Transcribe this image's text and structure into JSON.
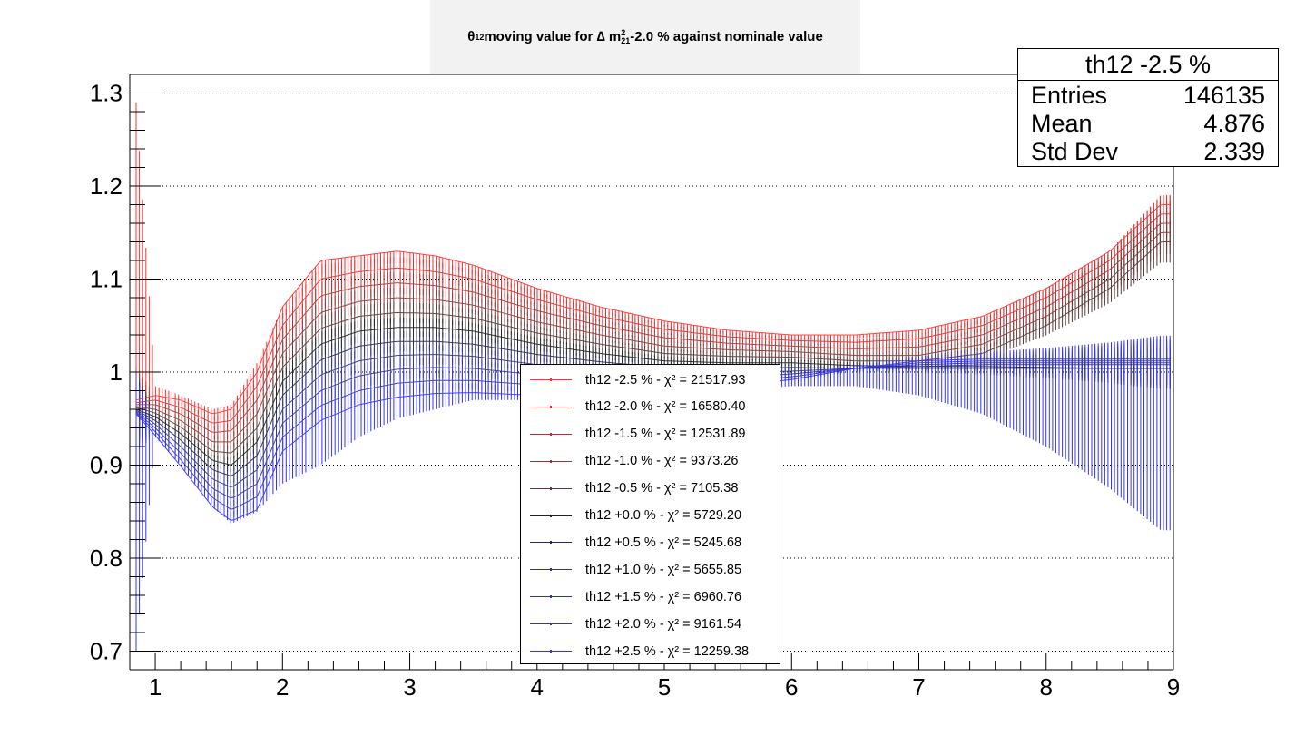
{
  "title": {
    "prefix": "θ",
    "prefix_sub": "12",
    "mid": " moving value for ∆ m",
    "sup": "2",
    "sub": "21",
    "suffix": " -2.0 % against nominale value"
  },
  "stats": {
    "title": "th12 -2.5 %",
    "rows": [
      {
        "label": "Entries",
        "value": "146135"
      },
      {
        "label": "Mean",
        "value": "4.876"
      },
      {
        "label": "Std Dev",
        "value": "2.339"
      }
    ]
  },
  "legend": [
    {
      "label": "th12 -2.5 % - χ² = 21517.93",
      "color": "#ff3333"
    },
    {
      "label": "th12 -2.0 % - χ² = 16580.40",
      "color": "#dd3333"
    },
    {
      "label": "th12 -1.5 % - χ² = 12531.89",
      "color": "#b13333"
    },
    {
      "label": "th12 -1.0 % - χ² = 9373.26",
      "color": "#8a3a3a"
    },
    {
      "label": "th12 -0.5 % - χ² = 7105.38",
      "color": "#5a3a3a"
    },
    {
      "label": "th12 +0.0 % - χ² = 5729.20",
      "color": "#222222"
    },
    {
      "label": "th12 +0.5 % - χ² = 5245.68",
      "color": "#2a2a55"
    },
    {
      "label": "th12 +1.0 % - χ² = 5655.85",
      "color": "#333388"
    },
    {
      "label": "th12 +1.5 % - χ² = 6960.76",
      "color": "#3333aa"
    },
    {
      "label": "th12 +2.0 % - χ² = 9161.54",
      "color": "#3333cc"
    },
    {
      "label": "th12 +2.5 % - χ² = 12259.38",
      "color": "#3333ff"
    }
  ],
  "chart_data": {
    "type": "line",
    "xlim": [
      0.8,
      9.0
    ],
    "ylim": [
      0.68,
      1.32
    ],
    "x_ticks": [
      "1",
      "2",
      "3",
      "4",
      "5",
      "6",
      "7",
      "8",
      "9"
    ],
    "y_ticks": [
      "0.7",
      "0.8",
      "0.9",
      "1",
      "1.1",
      "1.2",
      "1.3"
    ],
    "grid": "y-dotted",
    "legend_position": "bottom-center",
    "series": [
      {
        "name": "th12 -2.5 % - χ² = 21517.93",
        "x": [
          0.85,
          1.0,
          1.2,
          1.45,
          1.6,
          1.8,
          2.0,
          2.3,
          2.6,
          2.9,
          3.2,
          3.5,
          4.0,
          4.5,
          5.0,
          5.5,
          6.0,
          6.5,
          7.0,
          7.5,
          8.0,
          8.5,
          8.9
        ],
        "y": [
          0.97,
          0.975,
          0.97,
          0.955,
          0.96,
          1.0,
          1.07,
          1.12,
          1.125,
          1.13,
          1.125,
          1.115,
          1.09,
          1.07,
          1.055,
          1.045,
          1.04,
          1.04,
          1.045,
          1.06,
          1.09,
          1.13,
          1.18
        ]
      },
      {
        "name": "th12 -2.0 % - χ² = 16580.40",
        "x": [
          0.85,
          1.0,
          1.2,
          1.45,
          1.6,
          1.8,
          2.0,
          2.3,
          2.6,
          2.9,
          3.2,
          3.5,
          4.0,
          4.5,
          5.0,
          5.5,
          6.0,
          6.5,
          7.0,
          7.5,
          8.0,
          8.5,
          8.9
        ],
        "y": [
          0.967,
          0.97,
          0.962,
          0.945,
          0.948,
          0.985,
          1.05,
          1.1,
          1.108,
          1.112,
          1.108,
          1.1,
          1.078,
          1.06,
          1.046,
          1.038,
          1.034,
          1.032,
          1.036,
          1.05,
          1.08,
          1.12,
          1.17
        ]
      },
      {
        "name": "th12 -1.5 % - χ² = 12531.89",
        "x": [
          0.85,
          1.0,
          1.2,
          1.45,
          1.6,
          1.8,
          2.0,
          2.3,
          2.6,
          2.9,
          3.2,
          3.5,
          4.0,
          4.5,
          5.0,
          5.5,
          6.0,
          6.5,
          7.0,
          7.5,
          8.0,
          8.5,
          8.9
        ],
        "y": [
          0.965,
          0.965,
          0.955,
          0.935,
          0.937,
          0.97,
          1.035,
          1.082,
          1.092,
          1.096,
          1.093,
          1.086,
          1.066,
          1.05,
          1.037,
          1.031,
          1.028,
          1.025,
          1.027,
          1.04,
          1.07,
          1.11,
          1.16
        ]
      },
      {
        "name": "th12 -1.0 % - χ² = 9373.26",
        "x": [
          0.85,
          1.0,
          1.2,
          1.45,
          1.6,
          1.8,
          2.0,
          2.3,
          2.6,
          2.9,
          3.2,
          3.5,
          4.0,
          4.5,
          5.0,
          5.5,
          6.0,
          6.5,
          7.0,
          7.5,
          8.0,
          8.5,
          8.9
        ],
        "y": [
          0.963,
          0.96,
          0.948,
          0.925,
          0.925,
          0.955,
          1.02,
          1.064,
          1.076,
          1.08,
          1.078,
          1.072,
          1.054,
          1.04,
          1.028,
          1.024,
          1.022,
          1.018,
          1.018,
          1.03,
          1.06,
          1.1,
          1.15
        ]
      },
      {
        "name": "th12 -0.5 % - χ² = 7105.38",
        "x": [
          0.85,
          1.0,
          1.2,
          1.45,
          1.6,
          1.8,
          2.0,
          2.3,
          2.6,
          2.9,
          3.2,
          3.5,
          4.0,
          4.5,
          5.0,
          5.5,
          6.0,
          6.5,
          7.0,
          7.5,
          8.0,
          8.5,
          8.9
        ],
        "y": [
          0.962,
          0.956,
          0.941,
          0.915,
          0.913,
          0.94,
          1.005,
          1.047,
          1.06,
          1.064,
          1.063,
          1.058,
          1.042,
          1.03,
          1.02,
          1.017,
          1.016,
          1.012,
          1.012,
          1.02,
          1.05,
          1.09,
          1.14
        ]
      },
      {
        "name": "th12 +0.0 % - χ² = 5729.20",
        "x": [
          0.85,
          1.0,
          1.2,
          1.45,
          1.6,
          1.8,
          2.0,
          2.3,
          2.6,
          2.9,
          3.2,
          3.5,
          4.0,
          4.5,
          5.0,
          5.5,
          6.0,
          6.5,
          7.0,
          7.5,
          8.0,
          8.5,
          8.9
        ],
        "y": [
          0.96,
          0.952,
          0.934,
          0.905,
          0.9,
          0.925,
          0.99,
          1.03,
          1.044,
          1.048,
          1.048,
          1.044,
          1.03,
          1.02,
          1.012,
          1.01,
          1.01,
          1.007,
          1.006,
          1.006,
          1.005,
          1.004,
          1.004
        ]
      },
      {
        "name": "th12 +0.5 % - χ² = 5245.68",
        "x": [
          0.85,
          1.0,
          1.2,
          1.45,
          1.6,
          1.8,
          2.0,
          2.3,
          2.6,
          2.9,
          3.2,
          3.5,
          4.0,
          4.5,
          5.0,
          5.5,
          6.0,
          6.5,
          7.0,
          7.5,
          8.0,
          8.5,
          8.9
        ],
        "y": [
          0.959,
          0.948,
          0.927,
          0.895,
          0.888,
          0.91,
          0.975,
          1.013,
          1.028,
          1.033,
          1.033,
          1.03,
          1.019,
          1.011,
          1.005,
          1.004,
          1.005,
          1.004,
          1.004,
          1.004,
          1.004,
          1.004,
          1.004
        ]
      },
      {
        "name": "th12 +1.0 % - χ² = 5655.85",
        "x": [
          0.85,
          1.0,
          1.2,
          1.45,
          1.6,
          1.8,
          2.0,
          2.3,
          2.6,
          2.9,
          3.2,
          3.5,
          4.0,
          4.5,
          5.0,
          5.5,
          6.0,
          6.5,
          7.0,
          7.5,
          8.0,
          8.5,
          8.9
        ],
        "y": [
          0.958,
          0.944,
          0.92,
          0.885,
          0.876,
          0.895,
          0.96,
          0.997,
          1.012,
          1.018,
          1.019,
          1.017,
          1.008,
          1.002,
          0.998,
          0.999,
          1.001,
          1.004,
          1.006,
          1.008,
          1.008,
          1.008,
          1.008
        ]
      },
      {
        "name": "th12 +1.5 % - χ² = 6960.76",
        "x": [
          0.85,
          1.0,
          1.2,
          1.45,
          1.6,
          1.8,
          2.0,
          2.3,
          2.6,
          2.9,
          3.2,
          3.5,
          4.0,
          4.5,
          5.0,
          5.5,
          6.0,
          6.5,
          7.0,
          7.5,
          8.0,
          8.5,
          8.9
        ],
        "y": [
          0.957,
          0.94,
          0.913,
          0.875,
          0.864,
          0.88,
          0.945,
          0.98,
          0.996,
          1.003,
          1.005,
          1.004,
          0.997,
          0.993,
          0.991,
          0.994,
          0.998,
          1.004,
          1.008,
          1.01,
          1.01,
          1.01,
          1.01
        ]
      },
      {
        "name": "th12 +2.0 % - χ² = 9161.54",
        "x": [
          0.85,
          1.0,
          1.2,
          1.45,
          1.6,
          1.8,
          2.0,
          2.3,
          2.6,
          2.9,
          3.2,
          3.5,
          4.0,
          4.5,
          5.0,
          5.5,
          6.0,
          6.5,
          7.0,
          7.5,
          8.0,
          8.5,
          8.9
        ],
        "y": [
          0.956,
          0.936,
          0.906,
          0.865,
          0.852,
          0.866,
          0.93,
          0.964,
          0.98,
          0.988,
          0.991,
          0.991,
          0.986,
          0.984,
          0.984,
          0.989,
          0.995,
          1.004,
          1.01,
          1.012,
          1.012,
          1.012,
          1.012
        ]
      },
      {
        "name": "th12 +2.5 % - χ² = 12259.38",
        "x": [
          0.85,
          1.0,
          1.2,
          1.45,
          1.6,
          1.8,
          2.0,
          2.3,
          2.6,
          2.9,
          3.2,
          3.5,
          4.0,
          4.5,
          5.0,
          5.5,
          6.0,
          6.5,
          7.0,
          7.5,
          8.0,
          8.5,
          8.9
        ],
        "y": [
          0.955,
          0.932,
          0.899,
          0.855,
          0.84,
          0.852,
          0.915,
          0.948,
          0.965,
          0.973,
          0.977,
          0.978,
          0.975,
          0.975,
          0.977,
          0.984,
          0.992,
          1.004,
          1.012,
          1.014,
          1.014,
          1.014,
          1.014
        ]
      }
    ],
    "error_band": {
      "x": [
        0.85,
        1.0,
        1.2,
        1.45,
        1.6,
        1.8,
        2.0,
        2.3,
        2.6,
        2.9,
        3.2,
        3.5,
        4.0,
        4.5,
        5.0,
        5.5,
        6.0,
        6.5,
        7.0,
        7.5,
        8.0,
        8.5,
        8.9
      ],
      "lo": [
        0.7,
        0.93,
        0.9,
        0.855,
        0.837,
        0.85,
        0.88,
        0.9,
        0.93,
        0.95,
        0.96,
        0.97,
        0.97,
        0.975,
        0.975,
        0.98,
        0.985,
        0.985,
        0.975,
        0.955,
        0.92,
        0.875,
        0.83
      ],
      "hi": [
        1.29,
        0.985,
        0.975,
        0.96,
        0.965,
        1.01,
        1.07,
        1.12,
        1.125,
        1.13,
        1.125,
        1.115,
        1.09,
        1.07,
        1.055,
        1.045,
        1.04,
        1.04,
        1.045,
        1.06,
        1.09,
        1.13,
        1.19
      ]
    }
  }
}
